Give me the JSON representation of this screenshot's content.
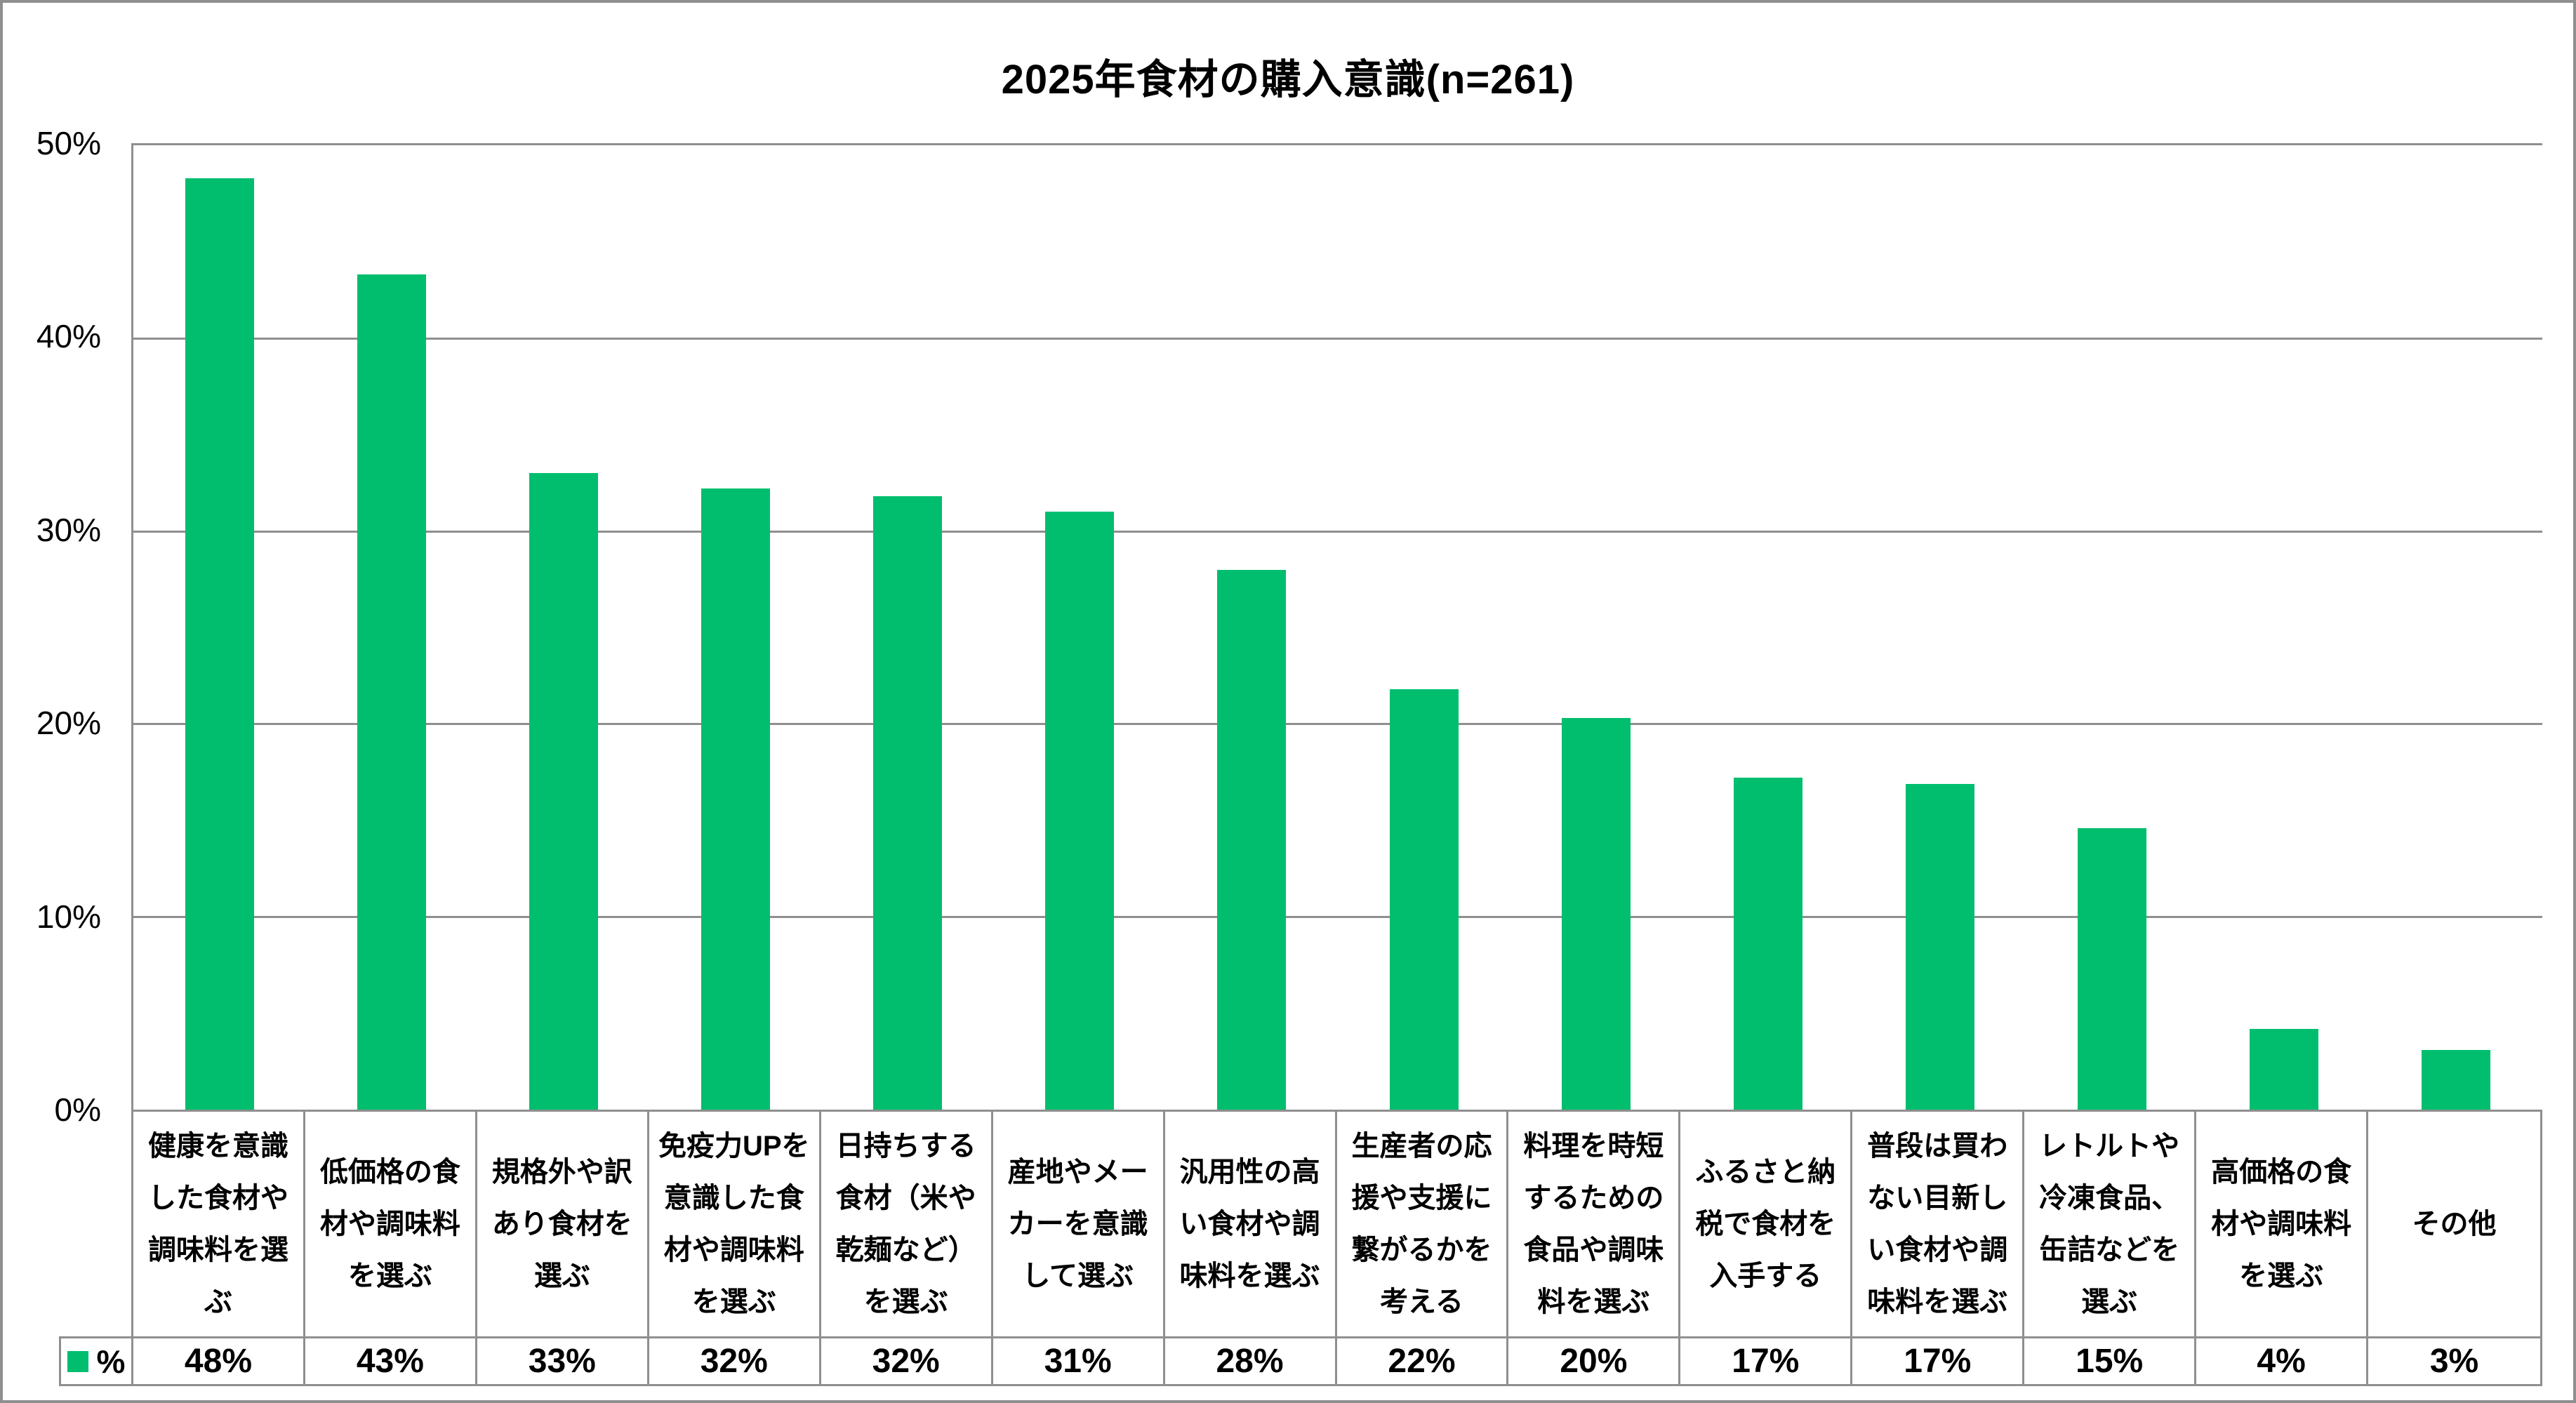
{
  "title": "2025年食材の購入意識(n=261)",
  "colors": {
    "bar": "#00BE6E",
    "line": "#8F8F8F",
    "text": "#000000",
    "background": "#FFFFFF"
  },
  "y_axis": {
    "tick_labels": [
      "50%",
      "40%",
      "30%",
      "20%",
      "10%",
      "0%"
    ],
    "tick_values": [
      50,
      40,
      30,
      20,
      10,
      0
    ],
    "min": 0,
    "max": 50,
    "step": 10
  },
  "legend": {
    "label": "%"
  },
  "chart_data": {
    "type": "bar",
    "title": "2025年食材の購入意識(n=261)",
    "categories": [
      "健康を意識した食材や調味料を選ぶ",
      "低価格の食材や調味料を選ぶ",
      "規格外や訳あり食材を選ぶ",
      "免疫力UPを意識した食材や調味料を選ぶ",
      "日持ちする食材（米や乾麺など）を選ぶ",
      "産地やメーカーを意識して選ぶ",
      "汎用性の高い食材や調味料を選ぶ",
      "生産者の応援や支援に繋がるかを考える",
      "料理を時短するための食品や調味料を選ぶ",
      "ふるさと納税で食材を入手する",
      "普段は買わない目新しい食材や調味料を選ぶ",
      "レトルトや冷凍食品、缶詰などを選ぶ",
      "高価格の食材や調味料を選ぶ",
      "その他"
    ],
    "series": [
      {
        "name": "%",
        "values": [
          48,
          43,
          33,
          32,
          32,
          31,
          28,
          22,
          20,
          17,
          17,
          15,
          4,
          3
        ]
      }
    ],
    "value_labels": [
      "48%",
      "43%",
      "33%",
      "32%",
      "32%",
      "31%",
      "28%",
      "22%",
      "20%",
      "17%",
      "17%",
      "15%",
      "4%",
      "3%"
    ],
    "bar_heights_precise": [
      48.3,
      43.3,
      33.0,
      32.2,
      31.8,
      31.0,
      28.0,
      21.8,
      20.3,
      17.2,
      16.9,
      14.6,
      4.2,
      3.1
    ],
    "ylim": [
      0,
      50
    ],
    "grid": true,
    "bar_gap_ratio": 0.4,
    "legend_position": "bottom-table-left"
  }
}
